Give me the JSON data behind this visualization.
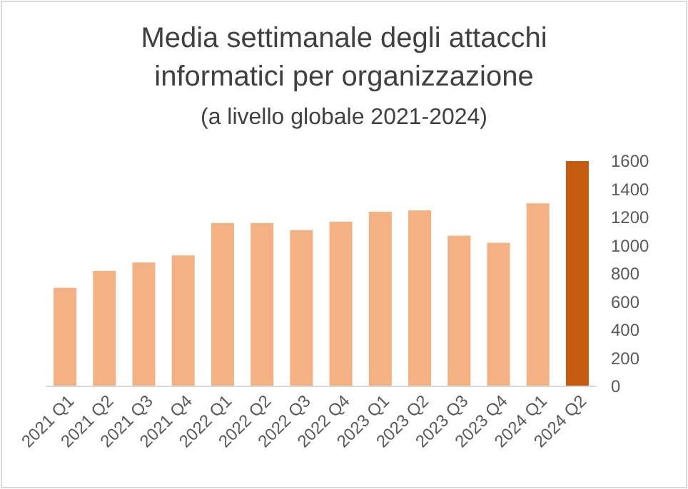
{
  "chart_data": {
    "type": "bar",
    "title": "Media settimanale degli attacchi informatici per organizzazione",
    "subtitle": "(a livello globale 2021-2024)",
    "categories": [
      "2021 Q1",
      "2021 Q2",
      "2021 Q3",
      "2021 Q4",
      "2022 Q1",
      "2022 Q2",
      "2022 Q3",
      "2022 Q4",
      "2023 Q1",
      "2023 Q2",
      "2023 Q3",
      "2023 Q4",
      "2024 Q1",
      "2024 Q2"
    ],
    "values": [
      700,
      820,
      880,
      930,
      1160,
      1160,
      1110,
      1170,
      1240,
      1250,
      1070,
      1020,
      1300,
      1600
    ],
    "colors": [
      "#f4b183",
      "#f4b183",
      "#f4b183",
      "#f4b183",
      "#f4b183",
      "#f4b183",
      "#f4b183",
      "#f4b183",
      "#f4b183",
      "#f4b183",
      "#f4b183",
      "#f4b183",
      "#f4b183",
      "#c55a11"
    ],
    "ylim": [
      0,
      1600
    ],
    "yticks": [
      0,
      200,
      400,
      600,
      800,
      1000,
      1200,
      1400,
      1600
    ],
    "grid": false
  }
}
